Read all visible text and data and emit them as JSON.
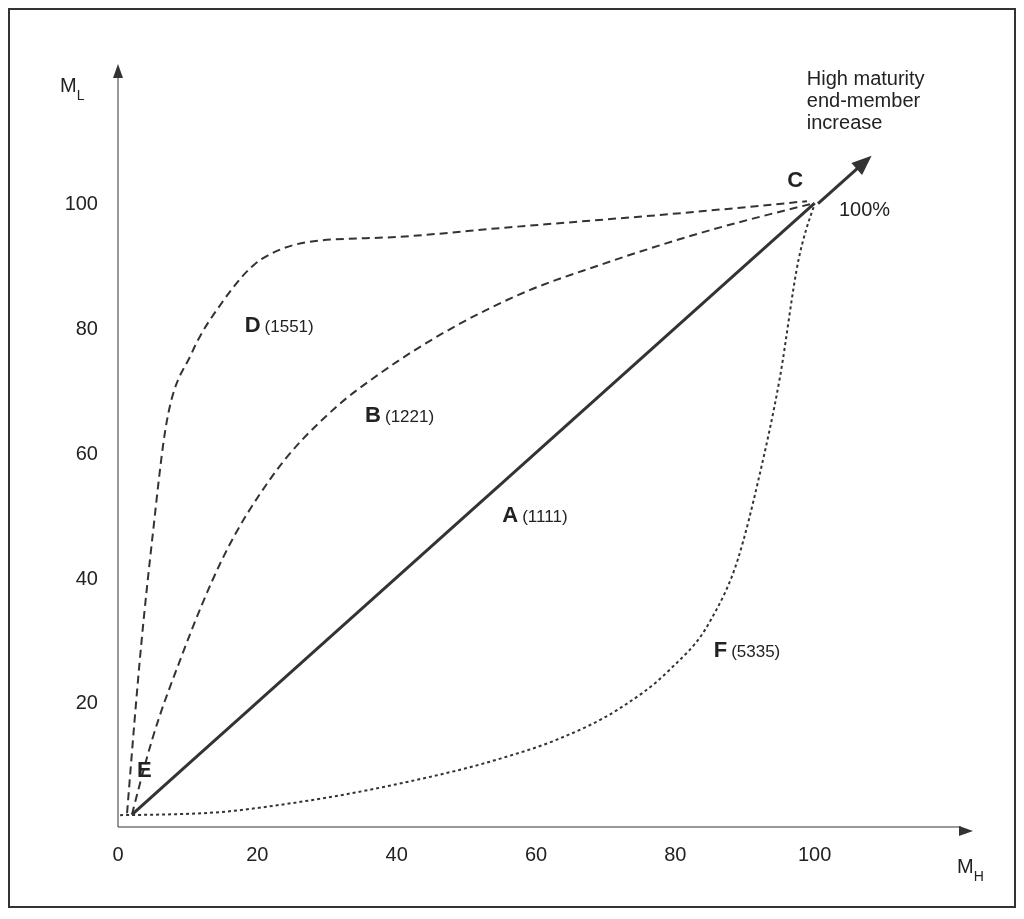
{
  "chart_data": {
    "type": "line",
    "xlabel": "M$_{H}$",
    "ylabel": "M$_{L}$",
    "xlim": [
      0,
      121
    ],
    "ylim": [
      0,
      121
    ],
    "xticks": [
      0,
      20,
      40,
      60,
      80,
      100
    ],
    "yticks": [
      20,
      40,
      60,
      80,
      100
    ],
    "grid": false,
    "legend": false,
    "marker": "none",
    "series": [
      {
        "name": "A (1111)",
        "color": "#333333",
        "line_style": "solid",
        "x": [
          2,
          100
        ],
        "values": [
          2,
          100
        ]
      },
      {
        "name": "D (1551)",
        "color": "#333333",
        "line_style": "dashed",
        "x": [
          1.3,
          3.4,
          4.9,
          7,
          10.6,
          14.9,
          20.6,
          29,
          40.6,
          55,
          83,
          98.9
        ],
        "values": [
          2.2,
          30,
          46,
          65,
          76,
          84,
          91,
          94,
          94.6,
          96,
          98.6,
          100.3
        ]
      },
      {
        "name": "B (1221)",
        "color": "#333333",
        "line_style": "dashed",
        "x": [
          2,
          4.9,
          9,
          15,
          22,
          31,
          38,
          48,
          59,
          69,
          83,
          100
        ],
        "values": [
          2,
          14,
          27,
          43,
          56,
          67,
          73,
          80,
          86,
          90,
          95,
          100
        ]
      },
      {
        "name": "F (5335)",
        "color": "#333333",
        "line_style": "dotted",
        "x": [
          0.3,
          12,
          26,
          40.6,
          55,
          63,
          72,
          79,
          85,
          89,
          92,
          95,
          97.7,
          99.9
        ],
        "values": [
          1.9,
          2.2,
          4,
          7,
          11,
          14,
          19,
          25,
          33,
          43,
          56,
          72,
          91,
          99.5
        ]
      }
    ],
    "annotations": [
      "High maturity end-member increase",
      "C",
      "100%",
      "E"
    ]
  }
}
